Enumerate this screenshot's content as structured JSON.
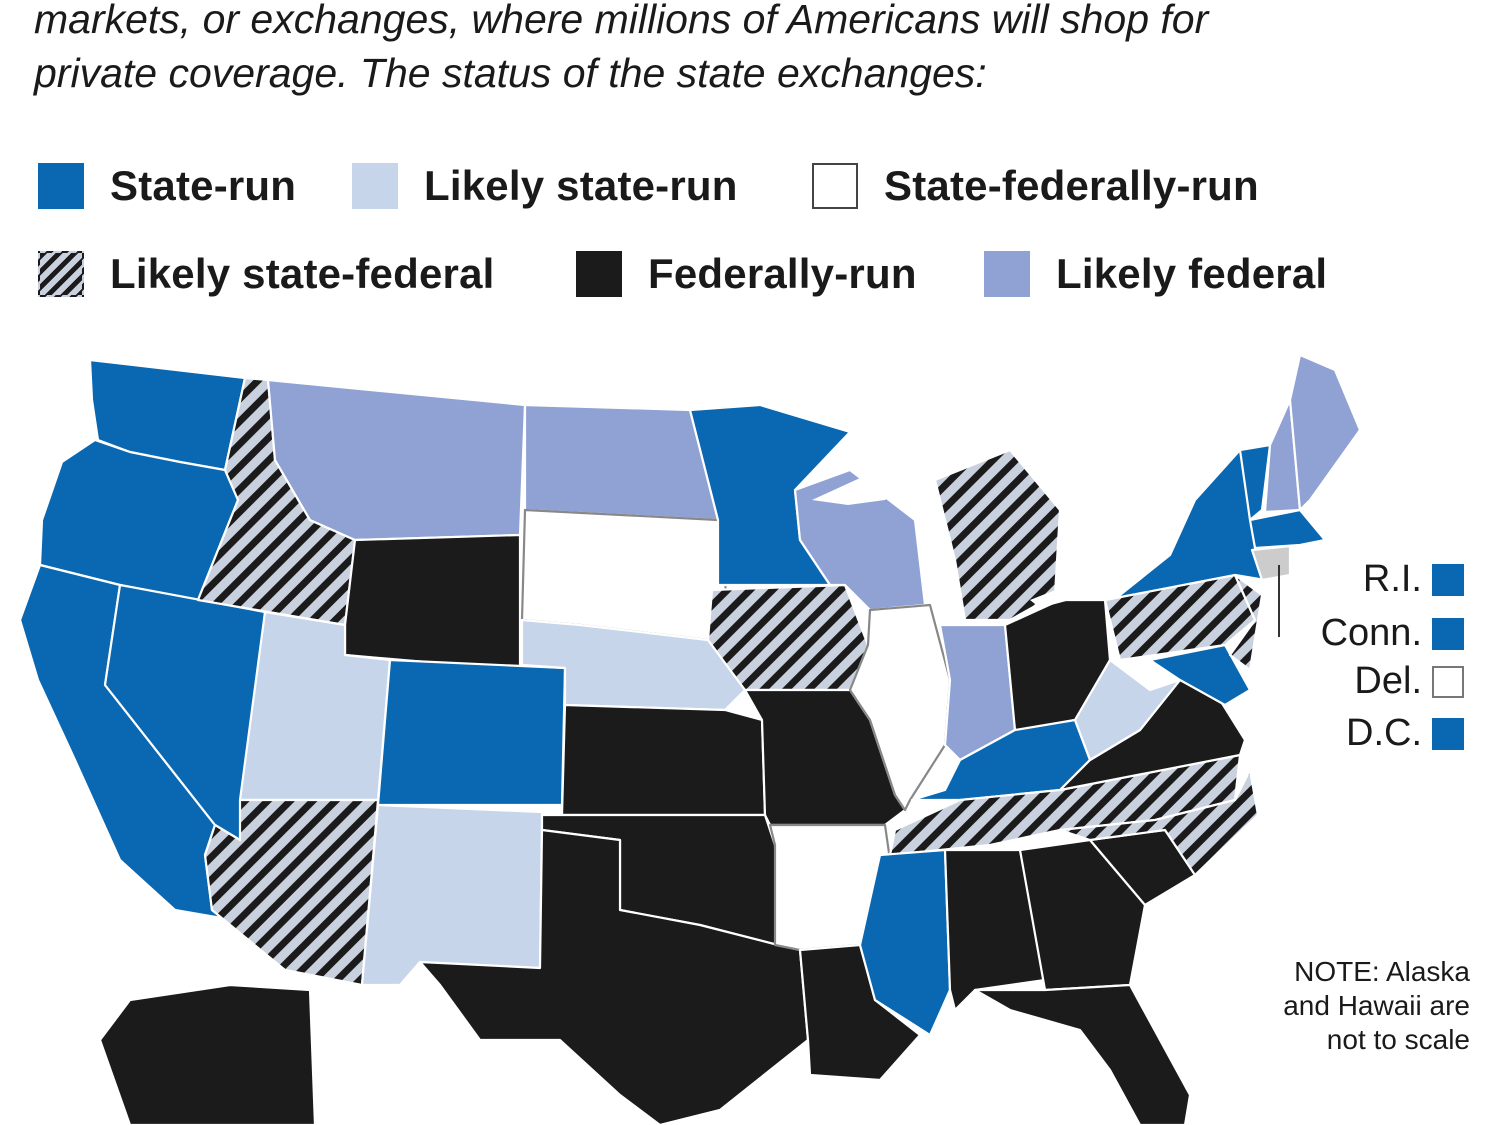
{
  "intro": {
    "line1": "markets, or exchanges, where millions of Americans will shop for",
    "line2": "private coverage. The status of the state exchanges:"
  },
  "legend": [
    {
      "label": "State-run",
      "color": "#0a67b1"
    },
    {
      "label": "Likely state-run",
      "color": "#c7d5ea"
    },
    {
      "label": "State-federally-run",
      "color": "#ffffff"
    },
    {
      "label": "Likely state-federal",
      "color": "hatched"
    },
    {
      "label": "Federally-run",
      "color": "#1b1b1b"
    },
    {
      "label": "Likely federal",
      "color": "#8fa2d3"
    }
  ],
  "small_states": [
    {
      "label": "R.I.",
      "status": "State-run"
    },
    {
      "label": "Conn.",
      "status": "State-run"
    },
    {
      "label": "Del.",
      "status": "State-federally-run"
    },
    {
      "label": "D.C.",
      "status": "State-run"
    }
  ],
  "note": {
    "line1": "NOTE: Alaska",
    "line2": "and Hawaii are",
    "line3": "not to scale"
  },
  "state_status": {
    "WA": "State-run",
    "OR": "State-run",
    "CA": "State-run",
    "NV": "State-run",
    "ID": "Likely state-federal",
    "MT": "Likely federal",
    "WY": "Federally-run",
    "UT": "Likely state-run",
    "AZ": "Likely state-federal",
    "CO": "State-run",
    "NM": "Likely state-run",
    "ND": "Likely federal",
    "SD": "State-federally-run",
    "NE": "Likely state-run",
    "KS": "Federally-run",
    "OK": "Federally-run",
    "TX": "Federally-run",
    "MN": "State-run",
    "IA": "Likely state-federal",
    "MO": "Federally-run",
    "AR": "State-federally-run",
    "LA": "Federally-run",
    "WI": "Likely federal",
    "IL": "State-federally-run",
    "MI": "Likely state-federal",
    "IN": "Likely federal",
    "OH": "Federally-run",
    "KY": "State-run",
    "TN": "Likely state-federal",
    "MS": "State-run",
    "AL": "Federally-run",
    "GA": "Federally-run",
    "FL": "Federally-run",
    "SC": "Federally-run",
    "NC": "Likely state-federal",
    "VA": "Federally-run",
    "WV": "Likely state-run",
    "PA": "Likely state-federal",
    "NY": "State-run",
    "VT": "State-run",
    "NH": "Likely federal",
    "ME": "Likely federal",
    "MA": "State-run",
    "MD": "State-run",
    "NJ": "Likely state-federal",
    "AK": "Federally-run"
  },
  "colors": {
    "state_run": "#0a67b1",
    "likely_state_run": "#c7d5ea",
    "state_federally_run": "#ffffff",
    "federally_run": "#1b1b1b",
    "likely_federal": "#8fa2d3",
    "hatch_light": "#c9d0de",
    "hatch_dark": "#1b1b1b"
  }
}
